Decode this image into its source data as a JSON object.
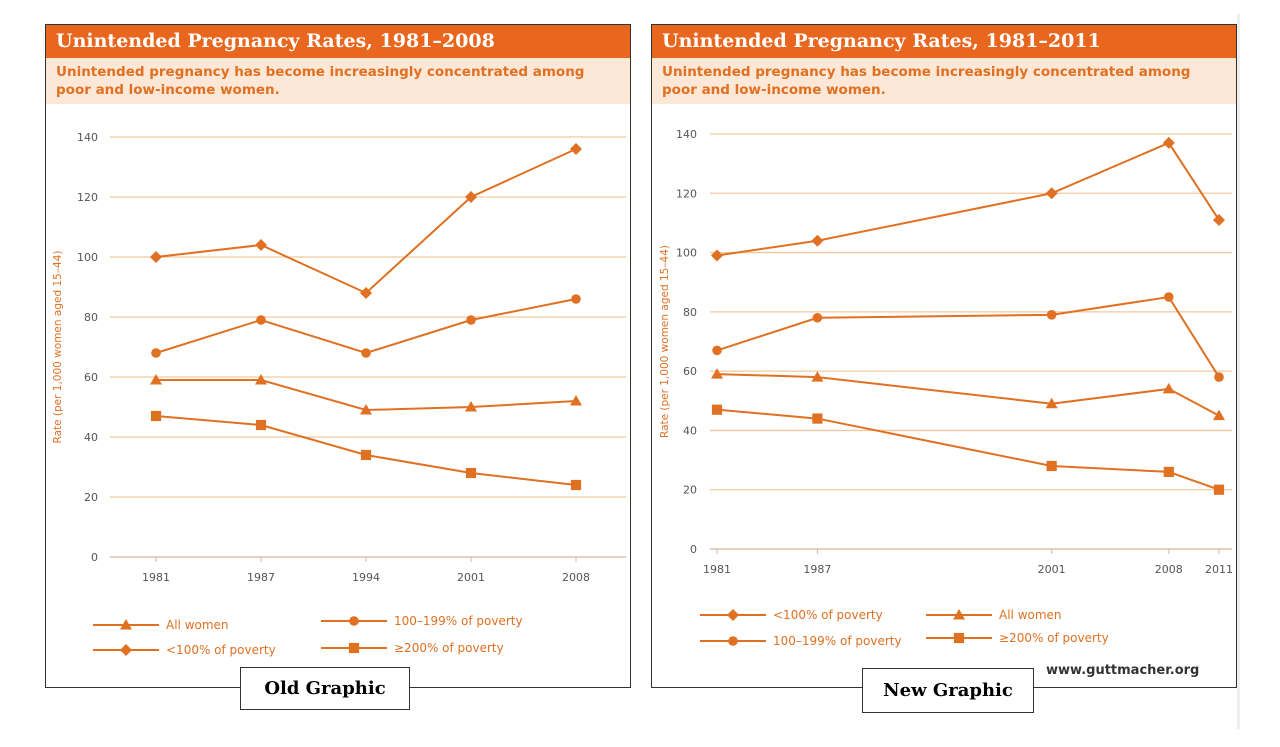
{
  "colors": {
    "accent": "#e8661e",
    "series": "#e07022",
    "band": "#fde7d6",
    "grid": "#f2c99f",
    "axis": "#d8c2ad"
  },
  "tags": {
    "old": "Old Graphic",
    "new": "New Graphic"
  },
  "source_url": "www.guttmacher.org",
  "chart_data": [
    {
      "type": "line",
      "title": "Unintended Pregnancy Rates, 1981–2008",
      "subtitle_lines": [
        "Unintended pregnancy has become increasingly concentrated among",
        "poor and low-income women."
      ],
      "ylabel": "Rate (per 1,000 women aged 15–44)",
      "xlabel": "",
      "x": [
        1981,
        1987,
        1994,
        2001,
        2008
      ],
      "x_tick_labels": [
        "1981",
        "1987",
        "1994",
        "2001",
        "2008"
      ],
      "x_spacing": "categorical",
      "ylim": [
        0,
        140
      ],
      "y_ticks": [
        0,
        20,
        40,
        60,
        80,
        100,
        120,
        140
      ],
      "grid": true,
      "legend_position": "bottom",
      "series": [
        {
          "name": "<100% of poverty",
          "marker": "diamond",
          "values": [
            100,
            104,
            88,
            120,
            136
          ]
        },
        {
          "name": "100–199% of poverty",
          "marker": "circle",
          "values": [
            68,
            79,
            68,
            79,
            86
          ]
        },
        {
          "name": "All women",
          "marker": "triangle",
          "values": [
            59,
            59,
            49,
            50,
            52
          ]
        },
        {
          "name": "≥200% of poverty",
          "marker": "square",
          "values": [
            47,
            44,
            34,
            28,
            24
          ]
        }
      ],
      "legend_order": [
        "All women",
        "100–199% of poverty",
        "<100% of poverty",
        "≥200% of poverty"
      ]
    },
    {
      "type": "line",
      "title": "Unintended Pregnancy Rates, 1981–2011",
      "subtitle_lines": [
        "Unintended pregnancy has become increasingly concentrated among",
        "poor and low-income women."
      ],
      "ylabel": "Rate (per 1,000 women aged 15–44)",
      "xlabel": "",
      "x": [
        1981,
        1987,
        2001,
        2008,
        2011
      ],
      "x_tick_labels": [
        "1981",
        "1987",
        "2001",
        "2008",
        "2011"
      ],
      "x_spacing": "linear",
      "ylim": [
        0,
        140
      ],
      "y_ticks": [
        0,
        20,
        40,
        60,
        80,
        100,
        120,
        140
      ],
      "grid": true,
      "legend_position": "bottom",
      "series": [
        {
          "name": "<100% of poverty",
          "marker": "diamond",
          "values": [
            99,
            104,
            120,
            137,
            111
          ]
        },
        {
          "name": "100–199% of poverty",
          "marker": "circle",
          "values": [
            67,
            78,
            79,
            85,
            58
          ]
        },
        {
          "name": "All women",
          "marker": "triangle",
          "values": [
            59,
            58,
            49,
            54,
            45
          ]
        },
        {
          "name": "≥200% of poverty",
          "marker": "square",
          "values": [
            47,
            44,
            28,
            26,
            20
          ]
        }
      ],
      "legend_order": [
        "<100% of poverty",
        "All women",
        "100–199% of poverty",
        "≥200% of poverty"
      ]
    }
  ]
}
